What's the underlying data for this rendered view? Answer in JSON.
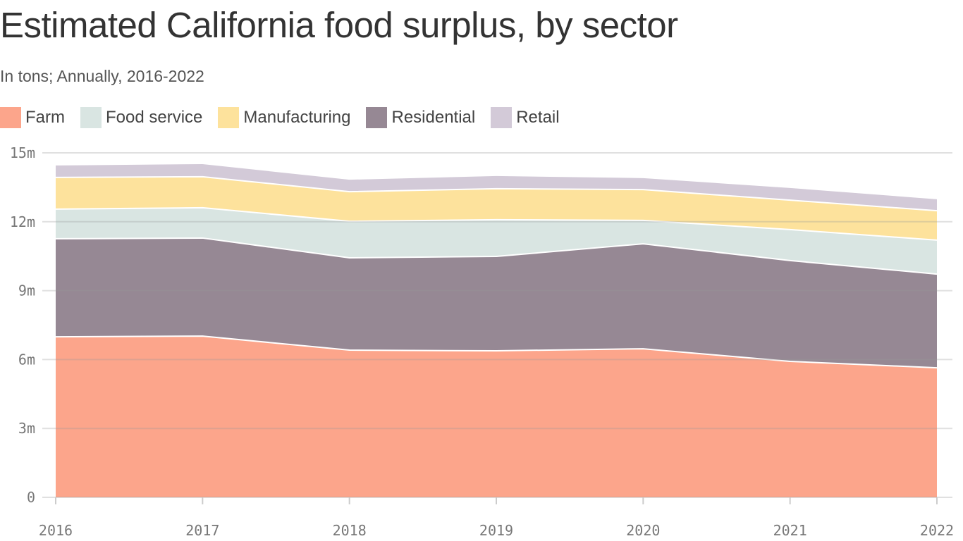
{
  "chart_data": {
    "type": "area",
    "stacked": true,
    "title": "Estimated California food surplus, by sector",
    "subtitle": "In tons; Annually, 2016-2022",
    "x": [
      "2016",
      "2017",
      "2018",
      "2019",
      "2020",
      "2021",
      "2022"
    ],
    "ylim": [
      0,
      15
    ],
    "yticks": [
      {
        "value": 0,
        "label": "0"
      },
      {
        "value": 3,
        "label": "3m"
      },
      {
        "value": 6,
        "label": "6m"
      },
      {
        "value": 9,
        "label": "9m"
      },
      {
        "value": 12,
        "label": "12m"
      },
      {
        "value": 15,
        "label": "15m"
      }
    ],
    "grid": true,
    "legend_position": "top-left",
    "units": "million tons",
    "stack_order": [
      "Farm",
      "Residential",
      "Food service",
      "Manufacturing",
      "Retail"
    ],
    "series": [
      {
        "name": "Farm",
        "color": "#fca58b",
        "values": [
          6.99,
          7.02,
          6.41,
          6.38,
          6.47,
          5.92,
          5.64
        ]
      },
      {
        "name": "Food service",
        "color": "#d9e5e2",
        "values": [
          1.29,
          1.32,
          1.59,
          1.6,
          1.02,
          1.35,
          1.48
        ]
      },
      {
        "name": "Manufacturing",
        "color": "#fde29c",
        "values": [
          1.38,
          1.35,
          1.29,
          1.35,
          1.34,
          1.28,
          1.28
        ]
      },
      {
        "name": "Residential",
        "color": "#968894",
        "values": [
          4.27,
          4.27,
          4.02,
          4.11,
          4.57,
          4.39,
          4.08
        ]
      },
      {
        "name": "Retail",
        "color": "#d3cad8",
        "values": [
          0.52,
          0.55,
          0.52,
          0.55,
          0.5,
          0.53,
          0.5
        ]
      }
    ]
  }
}
